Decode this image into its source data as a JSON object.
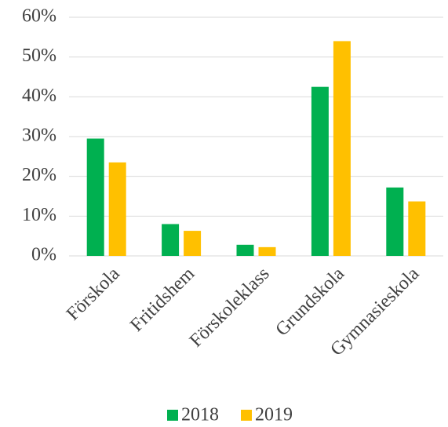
{
  "chart_data": {
    "type": "bar",
    "categories": [
      "Förskola",
      "Fritidshem",
      "Förskoleklass",
      "Grundskola",
      "Gymnasieskola"
    ],
    "series": [
      {
        "name": "2018",
        "color": "#00b050",
        "values": [
          29.5,
          8,
          2.8,
          42.5,
          17.2
        ]
      },
      {
        "name": "2019",
        "color": "#ffc000",
        "values": [
          23.5,
          6.3,
          2.2,
          54,
          13.7
        ]
      }
    ],
    "ylim": [
      0,
      60
    ],
    "yticks": [
      {
        "value": 0,
        "label": "0%"
      },
      {
        "value": 10,
        "label": "10%"
      },
      {
        "value": 20,
        "label": "20%"
      },
      {
        "value": 30,
        "label": "30%"
      },
      {
        "value": 40,
        "label": "40%"
      },
      {
        "value": 50,
        "label": "50%"
      },
      {
        "value": 60,
        "label": "60%"
      }
    ],
    "grid": true,
    "legend": "bottom"
  }
}
